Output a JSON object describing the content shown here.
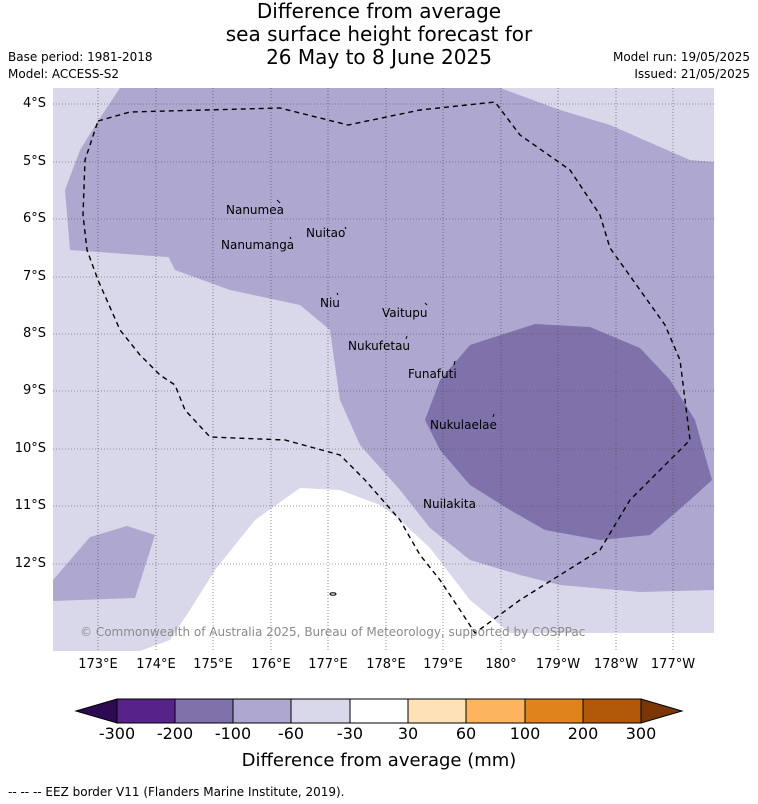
{
  "title": {
    "line1": "Difference from average",
    "line2": "sea surface height forecast for",
    "line3": "26 May to 8 June 2025"
  },
  "meta": {
    "base_period": "Base period: 1981-2018",
    "model": "Model: ACCESS-S2",
    "model_run": "Model run: 19/05/2025",
    "issued": "Issued: 21/05/2025"
  },
  "latitude_labels": [
    "4°S",
    "5°S",
    "6°S",
    "7°S",
    "8°S",
    "9°S",
    "10°S",
    "11°S",
    "12°S"
  ],
  "longitude_labels": [
    "173°E",
    "174°E",
    "175°E",
    "176°E",
    "177°E",
    "178°E",
    "179°E",
    "180°",
    "179°W",
    "178°W",
    "177°W"
  ],
  "islands": [
    "Nanumea",
    "Nuitao",
    "Nanumanga",
    "Niu",
    "Vaitupu",
    "Nukufetau",
    "Funafuti",
    "Nukulaelae",
    "Nuilakita"
  ],
  "copyright": "© Commonwealth of Australia 2025, Bureau of Meteorology, supported by COSPPac",
  "legend": {
    "title": "Difference from average (mm)",
    "tick_labels": [
      "-300",
      "-200",
      "-100",
      "-60",
      "-30",
      "30",
      "60",
      "100",
      "200",
      "300"
    ],
    "colors": [
      "#2d0a52",
      "#562389",
      "#7f72ab",
      "#aea7cf",
      "#d9d8ea",
      "#ffffff",
      "#fde1b7",
      "#fdb45e",
      "#e1831b",
      "#b15708",
      "#7a3604"
    ]
  },
  "footnote": "--  --  -- EEZ border V11 (Flanders Marine Institute, 2019)."
}
